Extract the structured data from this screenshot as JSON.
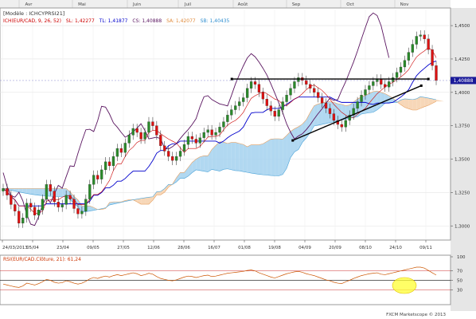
{
  "window": {
    "header_line1": "[Modèle : ICHCYPRSI21]",
    "header_line2": {
      "instrument": "ICH(EUR/CAD, 9, 26, 52)",
      "sl": "SL: 1,42277",
      "tl": "TL: 1,41877",
      "cs": "CS: 1,40888",
      "sa": "SA: 1,42077",
      "sb": "SB: 1,40435"
    },
    "footer": "FXCM Marketscope © 2013"
  },
  "months": [
    "Avr",
    "Mai",
    "Juin",
    "Juil",
    "Août",
    "Sep",
    "Oct",
    "Nov"
  ],
  "chart_data": [
    {
      "type": "candlestick",
      "title": "",
      "date_labels": [
        "24/03/2013",
        "05/04",
        "23/04",
        "09/05",
        "27/05",
        "12/06",
        "28/06",
        "16/07",
        "01/08",
        "19/08",
        "04/09",
        "20/09",
        "08/10",
        "24/10",
        "09/11"
      ],
      "y_ticks": [
        "1,4500",
        "1,4250",
        "1,4000",
        "1,3750",
        "1,3500",
        "1,3250",
        "1,3000"
      ],
      "ylim": [
        1.29,
        1.462
      ],
      "current_price_label": "1,40888",
      "current_price": 1.40888,
      "candles_close": [
        1.328,
        1.323,
        1.316,
        1.311,
        1.302,
        1.306,
        1.317,
        1.314,
        1.308,
        1.312,
        1.32,
        1.331,
        1.326,
        1.318,
        1.314,
        1.316,
        1.323,
        1.32,
        1.313,
        1.309,
        1.311,
        1.32,
        1.331,
        1.338,
        1.335,
        1.342,
        1.348,
        1.345,
        1.352,
        1.358,
        1.355,
        1.362,
        1.368,
        1.373,
        1.37,
        1.365,
        1.37,
        1.378,
        1.375,
        1.368,
        1.36,
        1.356,
        1.352,
        1.349,
        1.352,
        1.356,
        1.361,
        1.367,
        1.365,
        1.362,
        1.366,
        1.37,
        1.372,
        1.368,
        1.37,
        1.374,
        1.378,
        1.383,
        1.387,
        1.39,
        1.393,
        1.396,
        1.403,
        1.408,
        1.406,
        1.4,
        1.395,
        1.39,
        1.386,
        1.382,
        1.387,
        1.393,
        1.398,
        1.403,
        1.408,
        1.411,
        1.409,
        1.406,
        1.403,
        1.4,
        1.396,
        1.392,
        1.388,
        1.384,
        1.379,
        1.376,
        1.374,
        1.379,
        1.383,
        1.388,
        1.393,
        1.398,
        1.402,
        1.405,
        1.408,
        1.41,
        1.406,
        1.404,
        1.408,
        1.411,
        1.415,
        1.419,
        1.424,
        1.43,
        1.436,
        1.442,
        1.443,
        1.44,
        1.432,
        1.42,
        1.4089
      ],
      "series": [
        {
          "name": "Tenkan",
          "color": "#cc0000"
        },
        {
          "name": "Kijun",
          "color": "#0000cc"
        },
        {
          "name": "Chikou",
          "color": "#5a1560"
        },
        {
          "name": "Senkou A",
          "color": "#e8a060"
        },
        {
          "name": "Senkou B",
          "color": "#4aa3d8"
        }
      ],
      "trendlines": [
        {
          "from": {
            "x": 0.487,
            "y": 1.41
          },
          "to": {
            "x": 0.9,
            "y": 1.41
          },
          "color": "#000000"
        },
        {
          "from": {
            "x": 0.615,
            "y": 1.364
          },
          "to": {
            "x": 0.885,
            "y": 1.405
          },
          "color": "#000000"
        }
      ]
    },
    {
      "type": "line",
      "title": "RSI(EUR/CAD.Clôture, 21): 61,24",
      "y_ticks": [
        "100",
        "70",
        "50",
        "30"
      ],
      "ylim": [
        0,
        100
      ],
      "levels": [
        70,
        50,
        30
      ],
      "last_value": 61.24,
      "values": [
        42,
        40,
        38,
        36,
        35,
        38,
        44,
        42,
        40,
        43,
        47,
        52,
        50,
        46,
        44,
        45,
        49,
        47,
        44,
        42,
        44,
        48,
        53,
        56,
        54,
        57,
        59,
        57,
        60,
        62,
        60,
        62,
        64,
        66,
        64,
        60,
        62,
        65,
        63,
        58,
        54,
        52,
        50,
        49,
        51,
        54,
        57,
        59,
        58,
        56,
        58,
        60,
        61,
        58,
        59,
        61,
        63,
        65,
        66,
        67,
        68,
        69,
        71,
        72,
        70,
        66,
        63,
        60,
        57,
        55,
        58,
        61,
        64,
        66,
        68,
        69,
        67,
        64,
        62,
        60,
        57,
        54,
        51,
        49,
        46,
        44,
        43,
        47,
        50,
        54,
        57,
        60,
        62,
        64,
        65,
        66,
        63,
        62,
        64,
        66,
        68,
        70,
        72,
        74,
        76,
        78,
        78,
        76,
        71,
        66,
        61.24
      ]
    }
  ]
}
